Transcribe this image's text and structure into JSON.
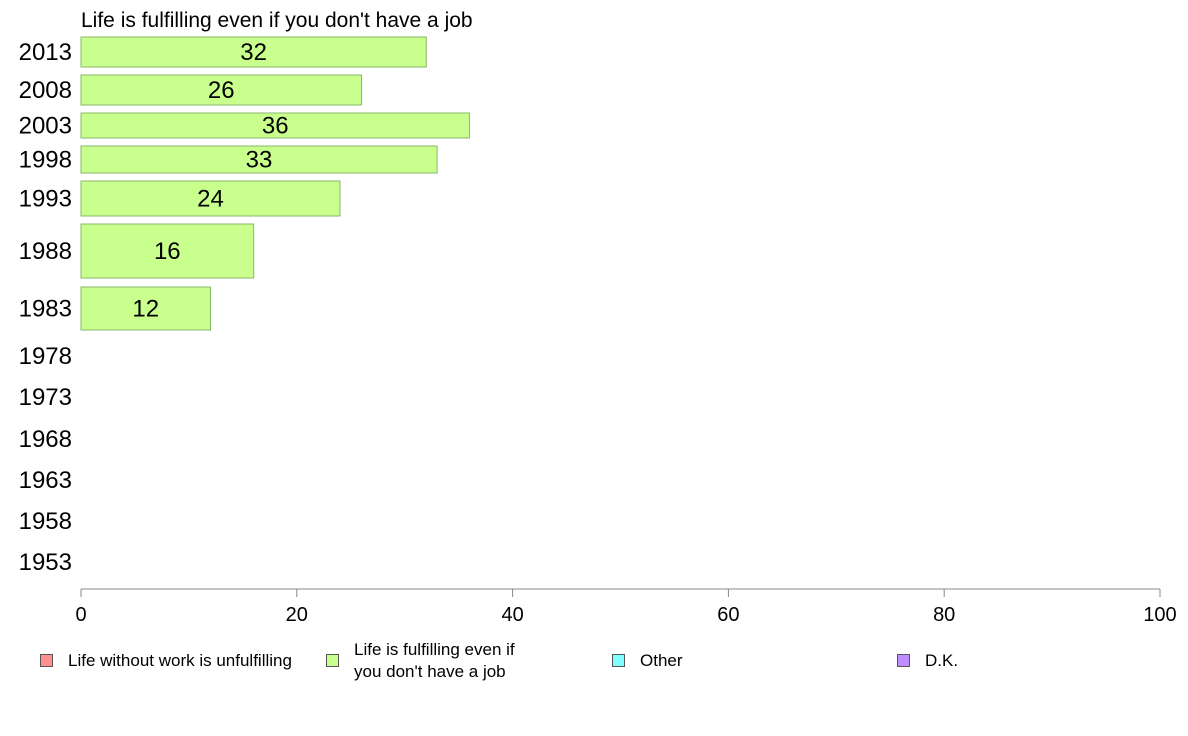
{
  "chart_data": {
    "type": "bar",
    "orientation": "horizontal",
    "title": "Life is fulfilling even if you don't have a job",
    "categories": [
      "2013",
      "2008",
      "2003",
      "1998",
      "1993",
      "1988",
      "1983",
      "1978",
      "1973",
      "1968",
      "1963",
      "1958",
      "1953"
    ],
    "series": [
      {
        "name": "Life without work is unfulfilling",
        "color": "#ff9090",
        "values": [
          null,
          null,
          null,
          null,
          null,
          null,
          null,
          null,
          null,
          null,
          null,
          null,
          null
        ]
      },
      {
        "name": "Life is fulfilling even if you don't have a job",
        "color": "#c9ff8c",
        "values": [
          32,
          26,
          36,
          33,
          24,
          16,
          12,
          null,
          null,
          null,
          null,
          null,
          null
        ],
        "labels": [
          "32",
          "26",
          "36",
          "33",
          "24",
          "16",
          "12",
          "",
          "",
          "",
          "",
          "",
          ""
        ]
      },
      {
        "name": "Other",
        "color": "#80ffff",
        "values": [
          null,
          null,
          null,
          null,
          null,
          null,
          null,
          null,
          null,
          null,
          null,
          null,
          null
        ]
      },
      {
        "name": "D.K.",
        "color": "#c08cff",
        "values": [
          null,
          null,
          null,
          null,
          null,
          null,
          null,
          null,
          null,
          null,
          null,
          null,
          null
        ]
      }
    ],
    "xlim": [
      0,
      100
    ],
    "xticks": [
      "0",
      "20",
      "40",
      "60",
      "80",
      "100"
    ],
    "grid": false,
    "legend_position": "bottom"
  },
  "legend": {
    "items": [
      {
        "label": "Life without work is unfulfilling",
        "color": "#ff9090"
      },
      {
        "label": "Life is fulfilling even if\nyou don't have a job",
        "color": "#c9ff8c"
      },
      {
        "label": "Other",
        "color": "#80ffff"
      },
      {
        "label": "D.K.",
        "color": "#c08cff"
      }
    ]
  },
  "colors": {
    "bar_border": "#88b868",
    "axis": "#888888",
    "text": "#000000"
  }
}
